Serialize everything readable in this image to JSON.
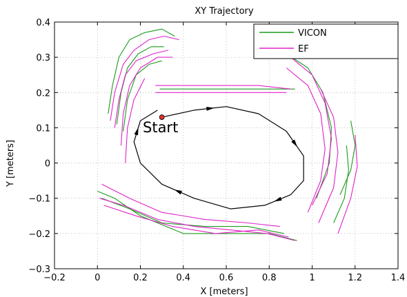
{
  "chart_data": {
    "type": "line",
    "title": "XY Trajectory",
    "xlabel": "X [meters]",
    "ylabel": "Y [meters]",
    "xlim": [
      -0.2,
      1.4
    ],
    "ylim": [
      -0.3,
      0.4
    ],
    "xticks": [
      "−0.2",
      "0",
      "0.2",
      "0.4",
      "0.6",
      "0.8",
      "1",
      "1.2",
      "1.4"
    ],
    "xtick_values": [
      -0.2,
      0,
      0.2,
      0.4,
      0.6,
      0.8,
      1,
      1.2,
      1.4
    ],
    "yticks": [
      "−0.3",
      "−0.2",
      "−0.1",
      "0",
      "0.1",
      "0.2",
      "0.3",
      "0.4"
    ],
    "ytick_values": [
      -0.3,
      -0.2,
      -0.1,
      0,
      0.1,
      0.2,
      0.3,
      0.4
    ],
    "grid": true,
    "legend_position": "top-right",
    "series": [
      {
        "name": "VICON",
        "color": "#1a9a1a",
        "segments": [
          [
            [
              0.29,
              0.21
            ],
            [
              0.45,
              0.21
            ],
            [
              0.6,
              0.21
            ],
            [
              0.75,
              0.21
            ],
            [
              0.92,
              0.21
            ]
          ],
          [
            [
              0.05,
              0.14
            ],
            [
              0.07,
              0.22
            ],
            [
              0.1,
              0.3
            ],
            [
              0.15,
              0.35
            ],
            [
              0.22,
              0.37
            ],
            [
              0.3,
              0.38
            ],
            [
              0.36,
              0.36
            ]
          ],
          [
            [
              0.09,
              0.11
            ],
            [
              0.11,
              0.2
            ],
            [
              0.14,
              0.27
            ],
            [
              0.19,
              0.31
            ],
            [
              0.25,
              0.33
            ],
            [
              0.31,
              0.33
            ]
          ],
          [
            [
              0.12,
              0.09
            ],
            [
              0.14,
              0.18
            ],
            [
              0.18,
              0.25
            ],
            [
              0.24,
              0.28
            ],
            [
              0.3,
              0.29
            ]
          ],
          [
            [
              0.0,
              -0.08
            ],
            [
              0.08,
              -0.1
            ],
            [
              0.2,
              -0.15
            ],
            [
              0.4,
              -0.2
            ],
            [
              0.6,
              -0.2
            ],
            [
              0.8,
              -0.2
            ],
            [
              0.93,
              -0.22
            ]
          ],
          [
            [
              0.02,
              -0.1
            ],
            [
              0.15,
              -0.13
            ],
            [
              0.3,
              -0.17
            ],
            [
              0.5,
              -0.18
            ],
            [
              0.7,
              -0.18
            ],
            [
              0.87,
              -0.2
            ]
          ],
          [
            [
              1.02,
              -0.1
            ],
            [
              1.08,
              0.0
            ],
            [
              1.09,
              0.1
            ],
            [
              1.05,
              0.2
            ],
            [
              0.98,
              0.27
            ],
            [
              0.88,
              0.31
            ],
            [
              0.78,
              0.32
            ]
          ],
          [
            [
              1.1,
              -0.17
            ],
            [
              1.15,
              -0.1
            ],
            [
              1.17,
              -0.02
            ],
            [
              1.16,
              0.05
            ]
          ],
          [
            [
              1.13,
              -0.09
            ],
            [
              1.18,
              -0.02
            ],
            [
              1.2,
              0.05
            ],
            [
              1.18,
              0.12
            ]
          ]
        ]
      },
      {
        "name": "EF",
        "color": "#e020c8",
        "segments": [
          [
            [
              0.27,
              0.22
            ],
            [
              0.45,
              0.22
            ],
            [
              0.6,
              0.22
            ],
            [
              0.75,
              0.22
            ],
            [
              0.9,
              0.21
            ]
          ],
          [
            [
              0.27,
              0.2
            ],
            [
              0.45,
              0.2
            ],
            [
              0.6,
              0.2
            ],
            [
              0.75,
              0.2
            ],
            [
              0.88,
              0.2
            ]
          ],
          [
            [
              0.06,
              0.12
            ],
            [
              0.08,
              0.2
            ],
            [
              0.12,
              0.28
            ],
            [
              0.17,
              0.32
            ],
            [
              0.24,
              0.35
            ],
            [
              0.31,
              0.36
            ],
            [
              0.38,
              0.35
            ]
          ],
          [
            [
              0.08,
              0.1
            ],
            [
              0.1,
              0.18
            ],
            [
              0.13,
              0.25
            ],
            [
              0.18,
              0.29
            ],
            [
              0.26,
              0.31
            ],
            [
              0.33,
              0.32
            ]
          ],
          [
            [
              0.11,
              0.05
            ],
            [
              0.12,
              0.14
            ],
            [
              0.15,
              0.22
            ],
            [
              0.2,
              0.27
            ],
            [
              0.28,
              0.3
            ],
            [
              0.35,
              0.3
            ]
          ],
          [
            [
              0.13,
              0.0
            ],
            [
              0.14,
              0.1
            ],
            [
              0.17,
              0.18
            ],
            [
              0.22,
              0.24
            ]
          ],
          [
            [
              0.01,
              -0.1
            ],
            [
              0.12,
              -0.12
            ],
            [
              0.28,
              -0.16
            ],
            [
              0.45,
              -0.18
            ],
            [
              0.62,
              -0.19
            ],
            [
              0.79,
              -0.2
            ],
            [
              0.92,
              -0.22
            ]
          ],
          [
            [
              0.03,
              -0.12
            ],
            [
              0.18,
              -0.15
            ],
            [
              0.35,
              -0.18
            ],
            [
              0.55,
              -0.2
            ],
            [
              0.75,
              -0.19
            ],
            [
              0.89,
              -0.21
            ]
          ],
          [
            [
              0.02,
              -0.06
            ],
            [
              0.15,
              -0.1
            ],
            [
              0.3,
              -0.14
            ],
            [
              0.5,
              -0.16
            ],
            [
              0.7,
              -0.17
            ],
            [
              0.85,
              -0.18
            ]
          ],
          [
            [
              1.0,
              -0.12
            ],
            [
              1.07,
              -0.03
            ],
            [
              1.09,
              0.07
            ],
            [
              1.06,
              0.17
            ],
            [
              1.0,
              0.25
            ],
            [
              0.9,
              0.3
            ],
            [
              0.78,
              0.31
            ]
          ],
          [
            [
              0.98,
              -0.14
            ],
            [
              1.04,
              -0.05
            ],
            [
              1.06,
              0.04
            ],
            [
              1.04,
              0.14
            ],
            [
              0.98,
              0.22
            ],
            [
              0.88,
              0.27
            ]
          ],
          [
            [
              1.03,
              -0.17
            ],
            [
              1.1,
              -0.07
            ],
            [
              1.12,
              0.03
            ],
            [
              1.1,
              0.13
            ],
            [
              1.04,
              0.21
            ]
          ],
          [
            [
              1.12,
              -0.2
            ],
            [
              1.18,
              -0.1
            ],
            [
              1.21,
              -0.01
            ],
            [
              1.2,
              0.08
            ]
          ]
        ]
      }
    ],
    "reference_path": [
      [
        0.3,
        0.13
      ],
      [
        0.45,
        0.15
      ],
      [
        0.6,
        0.16
      ],
      [
        0.75,
        0.14
      ],
      [
        0.88,
        0.09
      ],
      [
        0.96,
        0.02
      ],
      [
        0.96,
        -0.05
      ],
      [
        0.9,
        -0.09
      ],
      [
        0.78,
        -0.12
      ],
      [
        0.62,
        -0.13
      ],
      [
        0.45,
        -0.1
      ],
      [
        0.3,
        -0.06
      ],
      [
        0.2,
        0.0
      ],
      [
        0.17,
        0.06
      ],
      [
        0.2,
        0.12
      ],
      [
        0.28,
        0.15
      ]
    ],
    "start_point": {
      "x": 0.3,
      "y": 0.13,
      "label": "Start",
      "color": "#e03030"
    }
  }
}
